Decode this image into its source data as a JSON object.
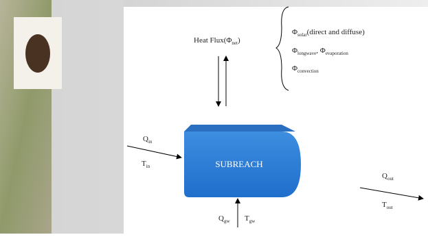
{
  "heat_flux": {
    "main": "Heat Flux(Φ",
    "sub": "net",
    "close": ")"
  },
  "fluxes": [
    {
      "symbol": "Φ",
      "sub": "solar",
      "text": "(direct and diffuse)"
    },
    {
      "symbol": "Φ",
      "sub": "longwave",
      "sep": ", Φ",
      "sub2": "evaporation"
    },
    {
      "symbol": "Φ",
      "sub": "convection"
    }
  ],
  "inflow": {
    "q": "Q",
    "q_sub": "in",
    "t": "T",
    "t_sub": "in"
  },
  "subreach": "SUBREACH",
  "outflow": {
    "q": "Q",
    "q_sub": "out",
    "t": "T",
    "t_sub": "out"
  },
  "groundwater": {
    "q": "Q",
    "q_sub": "gw",
    "t": "T",
    "t_sub": "gw"
  }
}
